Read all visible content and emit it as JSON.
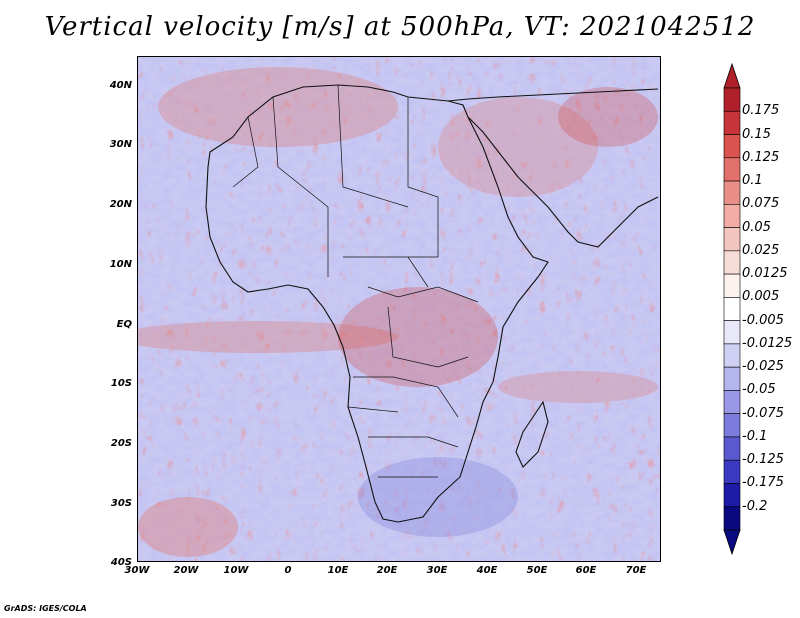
{
  "title": "Vertical velocity [m/s] at 500hPa, VT: 2021042512",
  "credit": "GrADS: IGES/COLA",
  "lat_labels": [
    "40N",
    "30N",
    "20N",
    "10N",
    "EQ",
    "10S",
    "20S",
    "30S",
    "40S"
  ],
  "lon_labels": [
    "30W",
    "20W",
    "10W",
    "0",
    "10E",
    "20E",
    "30E",
    "40E",
    "50E",
    "60E",
    "70E"
  ],
  "colorbar": {
    "labels": [
      "0.175",
      "0.15",
      "0.125",
      "0.1",
      "0.075",
      "0.05",
      "0.025",
      "0.0125",
      "0.005",
      "-0.005",
      "-0.0125",
      "-0.025",
      "-0.05",
      "-0.075",
      "-0.1",
      "-0.125",
      "-0.175",
      "-0.2"
    ],
    "colors": [
      "#b0202a",
      "#c8343a",
      "#d9544f",
      "#e3716b",
      "#ea8f88",
      "#f0aca5",
      "#f4c6c0",
      "#f8dcd8",
      "#fdf2f0",
      "#ffffff",
      "#e8e8f8",
      "#d0d0f4",
      "#b4b4ee",
      "#9898e6",
      "#7c7cdc",
      "#5a5ad0",
      "#3a3ac0",
      "#1c1ca8",
      "#0a0a80"
    ]
  },
  "field": {
    "variable": "Vertical velocity",
    "units": "m/s",
    "level": "500hPa",
    "valid_time": "2021042512"
  }
}
